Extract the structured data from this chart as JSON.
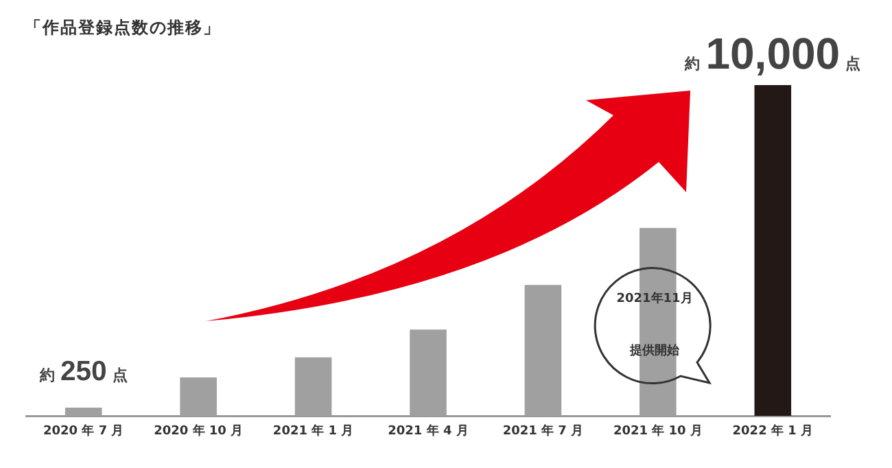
{
  "chart_data": {
    "type": "bar",
    "title": "「作品登録点数の推移」",
    "categories": [
      "2020 年 7 月",
      "2020 年 10 月",
      "2021 年 1 月",
      "2021 年 4 月",
      "2021 年 7 月",
      "2021 年 10 月",
      "2022 年 1 月"
    ],
    "values": [
      250,
      1160,
      1770,
      2610,
      3960,
      5680,
      10000
    ],
    "colors": [
      "#a0a0a0",
      "#a0a0a0",
      "#a0a0a0",
      "#a0a0a0",
      "#a0a0a0",
      "#a0a0a0",
      "#231815"
    ],
    "value_labels": [
      "約250点",
      null,
      null,
      null,
      null,
      null,
      "約10,000点"
    ],
    "annotations": [
      "2021年11月",
      "提供開始"
    ]
  }
}
